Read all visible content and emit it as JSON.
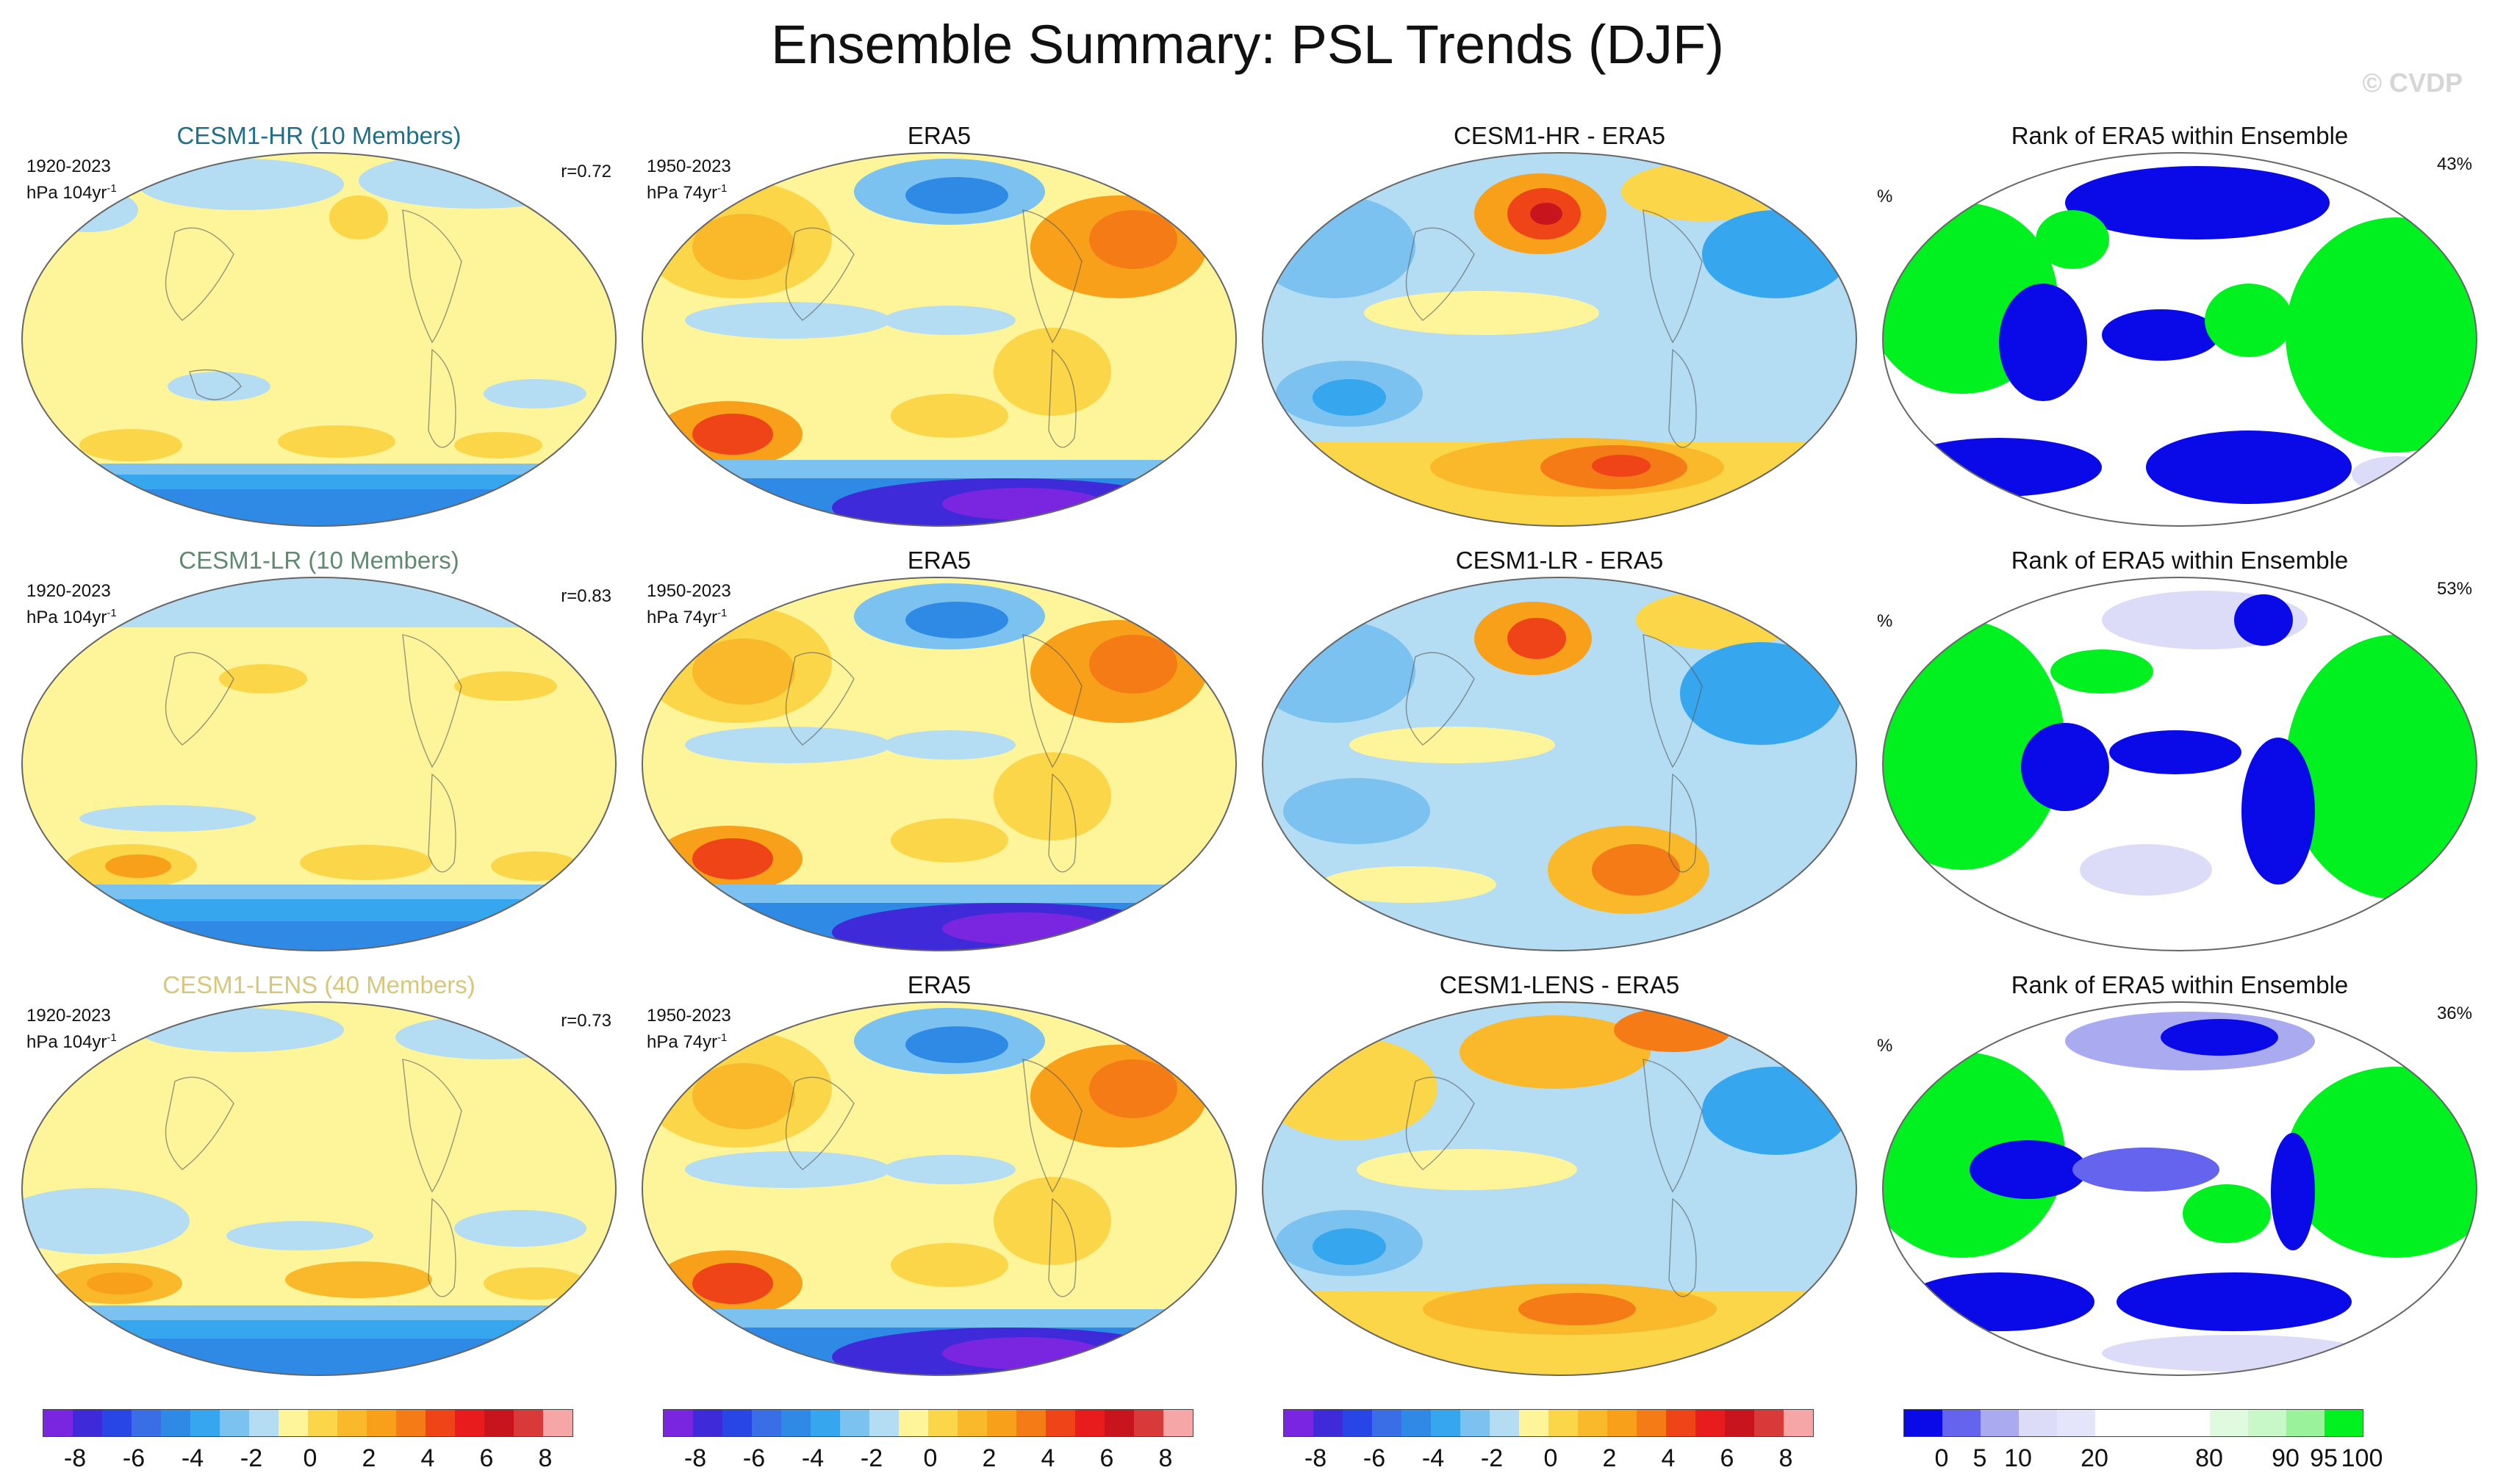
{
  "title": "Ensemble Summary: PSL Trends (DJF)",
  "watermark": "© CVDP",
  "colors": {
    "yellow": "#fef59b",
    "lightblue": "#b4dcf2",
    "orange": "#f9a01b",
    "red": "#e81c1c",
    "blue": "#2f8ae6",
    "darkblue": "#3e2ad8",
    "purple": "#7a26e0",
    "green": "#00f020",
    "rankblue": "#0a0ae8",
    "lavender": "#dcdcf8",
    "cesm_hr": "#1f6f8b",
    "cesm_lr": "#5f8a6f",
    "cesm_lens": "#d8c77a"
  },
  "rows": [
    {
      "model": {
        "title": "CESM1-HR (10 Members)",
        "period": "1920-2023",
        "units": "hPa 104yr",
        "exp": "-1",
        "corr": "r=0.72"
      },
      "obs": {
        "title": "ERA5",
        "period": "1950-2023",
        "units": "hPa 74yr",
        "exp": "-1"
      },
      "diff": {
        "title": "CESM1-HR - ERA5"
      },
      "rank": {
        "title": "Rank of ERA5 within Ensemble",
        "unit": "%",
        "pct": "43%"
      }
    },
    {
      "model": {
        "title": "CESM1-LR (10 Members)",
        "period": "1920-2023",
        "units": "hPa 104yr",
        "exp": "-1",
        "corr": "r=0.83"
      },
      "obs": {
        "title": "ERA5",
        "period": "1950-2023",
        "units": "hPa 74yr",
        "exp": "-1"
      },
      "diff": {
        "title": "CESM1-LR - ERA5"
      },
      "rank": {
        "title": "Rank of ERA5 within Ensemble",
        "unit": "%",
        "pct": "53%"
      }
    },
    {
      "model": {
        "title": "CESM1-LENS (40 Members)",
        "period": "1920-2023",
        "units": "hPa 104yr",
        "exp": "-1",
        "corr": "r=0.73"
      },
      "obs": {
        "title": "ERA5",
        "period": "1950-2023",
        "units": "hPa 74yr",
        "exp": "-1"
      },
      "diff": {
        "title": "CESM1-LENS - ERA5"
      },
      "rank": {
        "title": "Rank of ERA5 within Ensemble",
        "unit": "%",
        "pct": "36%"
      }
    }
  ],
  "colorbars": {
    "trend": {
      "colors": [
        "#7a26e0",
        "#3e2ad8",
        "#2846e6",
        "#3a6ee6",
        "#2f8ae6",
        "#36a6ee",
        "#7cc2f0",
        "#b4dcf2",
        "#fef59b",
        "#fcd649",
        "#f9b92b",
        "#f9a01b",
        "#f47b16",
        "#ee4418",
        "#e81c1c",
        "#c8141c",
        "#d83a3a",
        "#f6a6a6"
      ],
      "ticks": [
        "-8",
        "-6",
        "-4",
        "-2",
        "0",
        "2",
        "4",
        "6",
        "8"
      ]
    },
    "rank": {
      "colors": [
        "#0a0ae8",
        "#6464ee",
        "#aaaaf0",
        "#dcdcf8",
        "#e4e4fa",
        "#ffffff",
        "#ffffff",
        "#ffffff",
        "#e0fae0",
        "#c8f8c8",
        "#9af29a",
        "#00f020"
      ],
      "ticks": [
        "0",
        "5",
        "10",
        "20",
        "80",
        "90",
        "95",
        "100"
      ]
    }
  }
}
